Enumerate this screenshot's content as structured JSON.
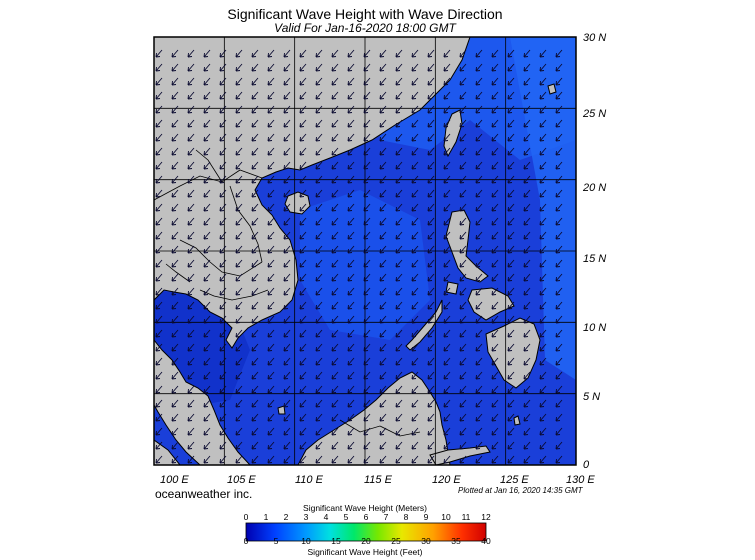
{
  "title": "Significant Wave Height with Wave Direction",
  "subtitle": "Valid For Jan-16-2020 18:00 GMT",
  "brand": "oceanweather inc.",
  "plotted": "Plotted at Jan 16, 2020 14:35 GMT",
  "map": {
    "lon_labels": [
      "100 E",
      "105 E",
      "110 E",
      "115 E",
      "120 E",
      "125 E",
      "130 E"
    ],
    "lat_labels": [
      "30 N",
      "25 N",
      "20 N",
      "15 N",
      "10 N",
      "5 N",
      "0"
    ],
    "land_color": "#c0c0c0",
    "ocean_color": "#1a3fd9",
    "wave_direction": "from northeast toward southwest (monsoon)"
  },
  "colorbar": {
    "title_top": "Significant Wave Height (Meters)",
    "title_bottom": "Significant Wave Height (Feet)",
    "meters": [
      "0",
      "1",
      "2",
      "3",
      "4",
      "5",
      "6",
      "7",
      "8",
      "9",
      "10",
      "11",
      "12"
    ],
    "feet": [
      "0",
      "5",
      "10",
      "15",
      "20",
      "25",
      "30",
      "35",
      "40"
    ],
    "colors": [
      "#0000c0",
      "#0033ff",
      "#0088ff",
      "#00ddee",
      "#00ee66",
      "#99ee00",
      "#ffee00",
      "#ff8800",
      "#ff2200",
      "#dd0000"
    ]
  }
}
